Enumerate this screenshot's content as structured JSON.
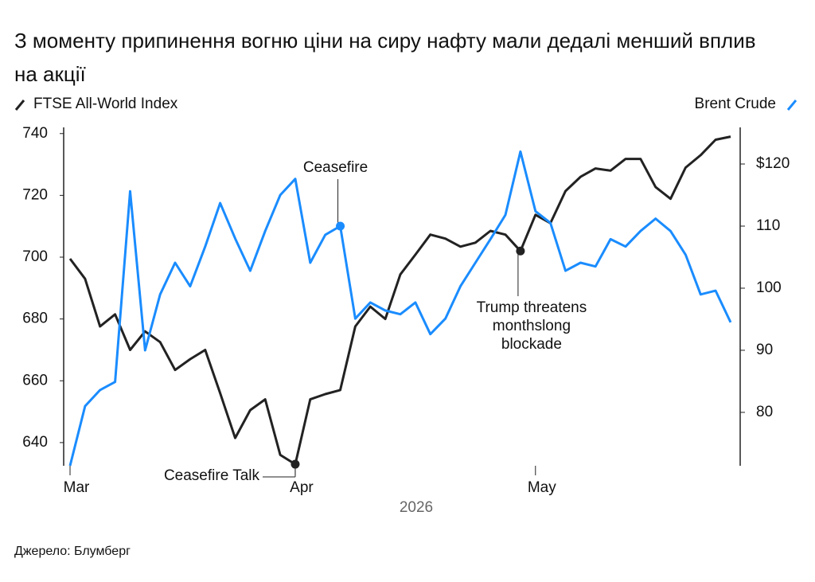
{
  "chart_data": {
    "type": "line",
    "title": "З моменту припинення вогню ціни на сиру нафту мали дедалі менший вплив на акції",
    "source": "Джерело: Блумберг",
    "xlabel": "2026",
    "categories": [
      "Mar",
      null,
      null,
      null,
      null,
      null,
      null,
      null,
      null,
      null,
      null,
      null,
      null,
      null,
      null,
      "Apr",
      null,
      null,
      null,
      null,
      null,
      null,
      null,
      null,
      null,
      null,
      null,
      null,
      null,
      null,
      null,
      "May",
      null,
      null,
      null,
      null,
      null,
      null,
      null,
      null,
      null,
      null,
      null,
      null,
      null
    ],
    "series": [
      {
        "name": "FTSE All-World Index",
        "color": "#222222",
        "values": [
          699.5,
          693,
          677.6,
          681.5,
          670,
          676,
          672.5,
          663.5,
          667,
          670,
          656,
          641.5,
          650.5,
          654,
          636,
          633,
          654,
          655.7,
          657,
          677.6,
          684,
          680,
          694.4,
          700.8,
          707.3,
          706,
          703.4,
          704.7,
          708.5,
          707.3,
          702,
          713.7,
          711,
          721.4,
          726,
          728.7,
          728,
          731.8,
          731.8,
          722.7,
          718.9,
          729,
          733,
          738,
          739
        ]
      },
      {
        "name": "Brent Crude",
        "color": "#1a8cff",
        "axis": "y2",
        "values": [
          71.4,
          81,
          83.6,
          84.9,
          115.6,
          90,
          99,
          104.1,
          100.3,
          106.7,
          113.7,
          108,
          102.8,
          109.2,
          115,
          117.6,
          104.1,
          108.6,
          110,
          95.1,
          97.7,
          96.4,
          95.8,
          97.7,
          92.6,
          95.1,
          100.3,
          104.1,
          107.9,
          111.8,
          122,
          112.4,
          110.5,
          102.8,
          104.1,
          103.5,
          107.9,
          106.7,
          109.2,
          111.2,
          109.2,
          105.4,
          99,
          99.6,
          94.5
        ]
      }
    ],
    "ylim": [
      632.5,
      742
    ],
    "yticks": [
      640,
      660,
      680,
      700,
      720,
      740
    ],
    "y2lim": [
      71.4,
      125.9
    ],
    "y2ticks": [
      80,
      90,
      100,
      110,
      {
        "value": 120,
        "label": "$120"
      }
    ],
    "annotations": [
      {
        "lines": [
          "Ceasefire Talk"
        ]
      },
      {
        "lines": [
          "Ceasefire"
        ]
      },
      {
        "lines": [
          "Trump threatens",
          "monthslong",
          "blockade"
        ]
      }
    ],
    "grid": false
  }
}
